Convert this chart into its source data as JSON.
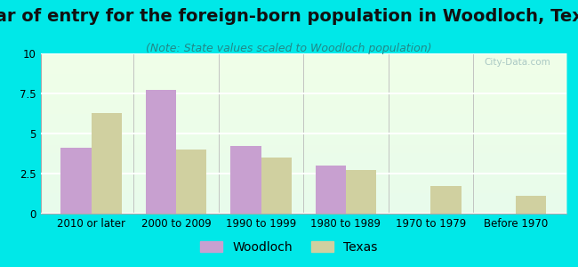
{
  "title": "Year of entry for the foreign-born population in Woodloch, Texas",
  "subtitle": "(Note: State values scaled to Woodloch population)",
  "categories": [
    "2010 or later",
    "2000 to 2009",
    "1990 to 1999",
    "1980 to 1989",
    "1970 to 1979",
    "Before 1970"
  ],
  "woodloch_values": [
    4.1,
    7.7,
    4.2,
    3.0,
    0.0,
    0.0
  ],
  "texas_values": [
    6.3,
    4.0,
    3.5,
    2.7,
    1.7,
    1.1
  ],
  "woodloch_color": "#c8a0d0",
  "texas_color": "#d0d0a0",
  "background_color": "#00e8e8",
  "plot_bg_color": "#f0ffe8",
  "ylim": [
    0,
    10
  ],
  "yticks": [
    0,
    2.5,
    5,
    7.5,
    10
  ],
  "ytick_labels": [
    "0",
    "2.5",
    "5",
    "7.5",
    "10"
  ],
  "bar_width": 0.36,
  "title_fontsize": 14,
  "subtitle_fontsize": 9,
  "tick_fontsize": 8.5,
  "legend_fontsize": 10
}
